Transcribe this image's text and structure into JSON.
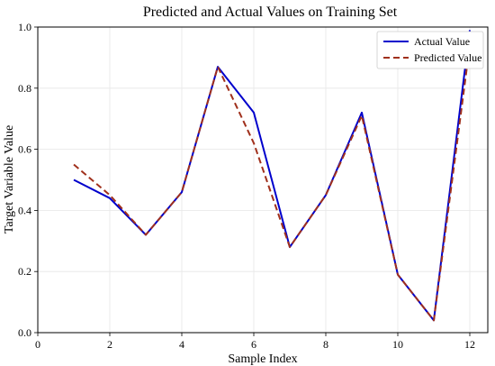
{
  "chart_data": {
    "type": "line",
    "title": "Predicted and Actual Values on Training Set",
    "xlabel": "Sample Index",
    "ylabel": "Target Variable Value",
    "xlim": [
      0,
      12.5
    ],
    "ylim": [
      0.0,
      1.0
    ],
    "xticks": [
      0,
      2,
      4,
      6,
      8,
      10,
      12
    ],
    "yticks": [
      0.0,
      0.2,
      0.4,
      0.6,
      0.8,
      1.0
    ],
    "grid": true,
    "legend_position": "top-right",
    "x": [
      1,
      2,
      3,
      4,
      5,
      6,
      7,
      8,
      9,
      10,
      11,
      12
    ],
    "series": [
      {
        "name": "Actual Value",
        "color": "#0000cc",
        "style": "solid",
        "values": [
          0.5,
          0.44,
          0.32,
          0.46,
          0.87,
          0.72,
          0.28,
          0.45,
          0.72,
          0.19,
          0.04,
          0.99
        ]
      },
      {
        "name": "Predicted Value",
        "color": "#a0301c",
        "style": "dashed",
        "values": [
          0.55,
          0.45,
          0.32,
          0.46,
          0.87,
          0.62,
          0.28,
          0.45,
          0.71,
          0.19,
          0.04,
          0.94
        ]
      }
    ]
  }
}
